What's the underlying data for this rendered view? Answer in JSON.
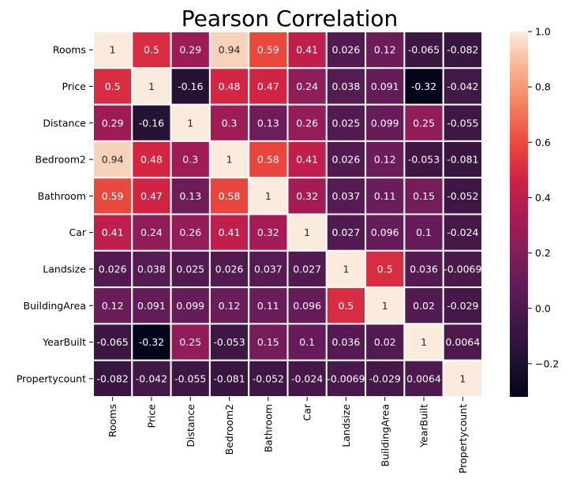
{
  "chart_data": {
    "type": "heatmap",
    "title": "Pearson Correlation",
    "x_labels": [
      "Rooms",
      "Price",
      "Distance",
      "Bedroom2",
      "Bathroom",
      "Car",
      "Landsize",
      "BuildingArea",
      "YearBuilt",
      "Propertycount"
    ],
    "y_labels": [
      "Rooms",
      "Price",
      "Distance",
      "Bedroom2",
      "Bathroom",
      "Car",
      "Landsize",
      "BuildingArea",
      "YearBuilt",
      "Propertycount"
    ],
    "values": [
      [
        1,
        0.5,
        0.29,
        0.94,
        0.59,
        0.41,
        0.026,
        0.12,
        -0.065,
        -0.082
      ],
      [
        0.5,
        1,
        -0.16,
        0.48,
        0.47,
        0.24,
        0.038,
        0.091,
        -0.32,
        -0.042
      ],
      [
        0.29,
        -0.16,
        1,
        0.3,
        0.13,
        0.26,
        0.025,
        0.099,
        0.25,
        -0.055
      ],
      [
        0.94,
        0.48,
        0.3,
        1,
        0.58,
        0.41,
        0.026,
        0.12,
        -0.053,
        -0.081
      ],
      [
        0.59,
        0.47,
        0.13,
        0.58,
        1,
        0.32,
        0.037,
        0.11,
        0.15,
        -0.052
      ],
      [
        0.41,
        0.24,
        0.26,
        0.41,
        0.32,
        1,
        0.027,
        0.096,
        0.1,
        -0.024
      ],
      [
        0.026,
        0.038,
        0.025,
        0.026,
        0.037,
        0.027,
        1,
        0.5,
        0.036,
        -0.0069
      ],
      [
        0.12,
        0.091,
        0.099,
        0.12,
        0.11,
        0.096,
        0.5,
        1,
        0.02,
        -0.029
      ],
      [
        -0.065,
        -0.32,
        0.25,
        -0.053,
        0.15,
        0.1,
        0.036,
        0.02,
        1,
        0.0064
      ],
      [
        -0.082,
        -0.042,
        -0.055,
        -0.081,
        -0.052,
        -0.024,
        -0.0069,
        -0.029,
        0.0064,
        1
      ]
    ],
    "cell_labels": [
      [
        "1",
        "0.5",
        "0.29",
        "0.94",
        "0.59",
        "0.41",
        "0.026",
        "0.12",
        "-0.065",
        "-0.082"
      ],
      [
        "0.5",
        "1",
        "-0.16",
        "0.48",
        "0.47",
        "0.24",
        "0.038",
        "0.091",
        "-0.32",
        "-0.042"
      ],
      [
        "0.29",
        "-0.16",
        "1",
        "0.3",
        "0.13",
        "0.26",
        "0.025",
        "0.099",
        "0.25",
        "-0.055"
      ],
      [
        "0.94",
        "0.48",
        "0.3",
        "1",
        "0.58",
        "0.41",
        "0.026",
        "0.12",
        "-0.053",
        "-0.081"
      ],
      [
        "0.59",
        "0.47",
        "0.13",
        "0.58",
        "1",
        "0.32",
        "0.037",
        "0.11",
        "0.15",
        "-0.052"
      ],
      [
        "0.41",
        "0.24",
        "0.26",
        "0.41",
        "0.32",
        "1",
        "0.027",
        "0.096",
        "0.1",
        "-0.024"
      ],
      [
        "0.026",
        "0.038",
        "0.025",
        "0.026",
        "0.037",
        "0.027",
        "1",
        "0.5",
        "0.036",
        "-0.0069"
      ],
      [
        "0.12",
        "0.091",
        "0.099",
        "0.12",
        "0.11",
        "0.096",
        "0.5",
        "1",
        "0.02",
        "-0.029"
      ],
      [
        "-0.065",
        "-0.32",
        "0.25",
        "-0.053",
        "0.15",
        "0.1",
        "0.036",
        "0.02",
        "1",
        "0.0064"
      ],
      [
        "-0.082",
        "-0.042",
        "-0.055",
        "-0.081",
        "-0.052",
        "-0.024",
        "-0.0069",
        "-0.029",
        "0.0064",
        "1"
      ]
    ],
    "colorbar": {
      "min": -0.32,
      "max": 1.0,
      "ticks": [
        1.0,
        0.8,
        0.6,
        0.4,
        0.2,
        0.0,
        -0.2
      ],
      "tick_labels": [
        "1.0",
        "0.8",
        "0.6",
        "0.4",
        "0.2",
        "0.0",
        "−0.2"
      ]
    },
    "colormap": "rocket",
    "cell_border_color": "#ffffff",
    "xlabel": "",
    "ylabel": ""
  }
}
